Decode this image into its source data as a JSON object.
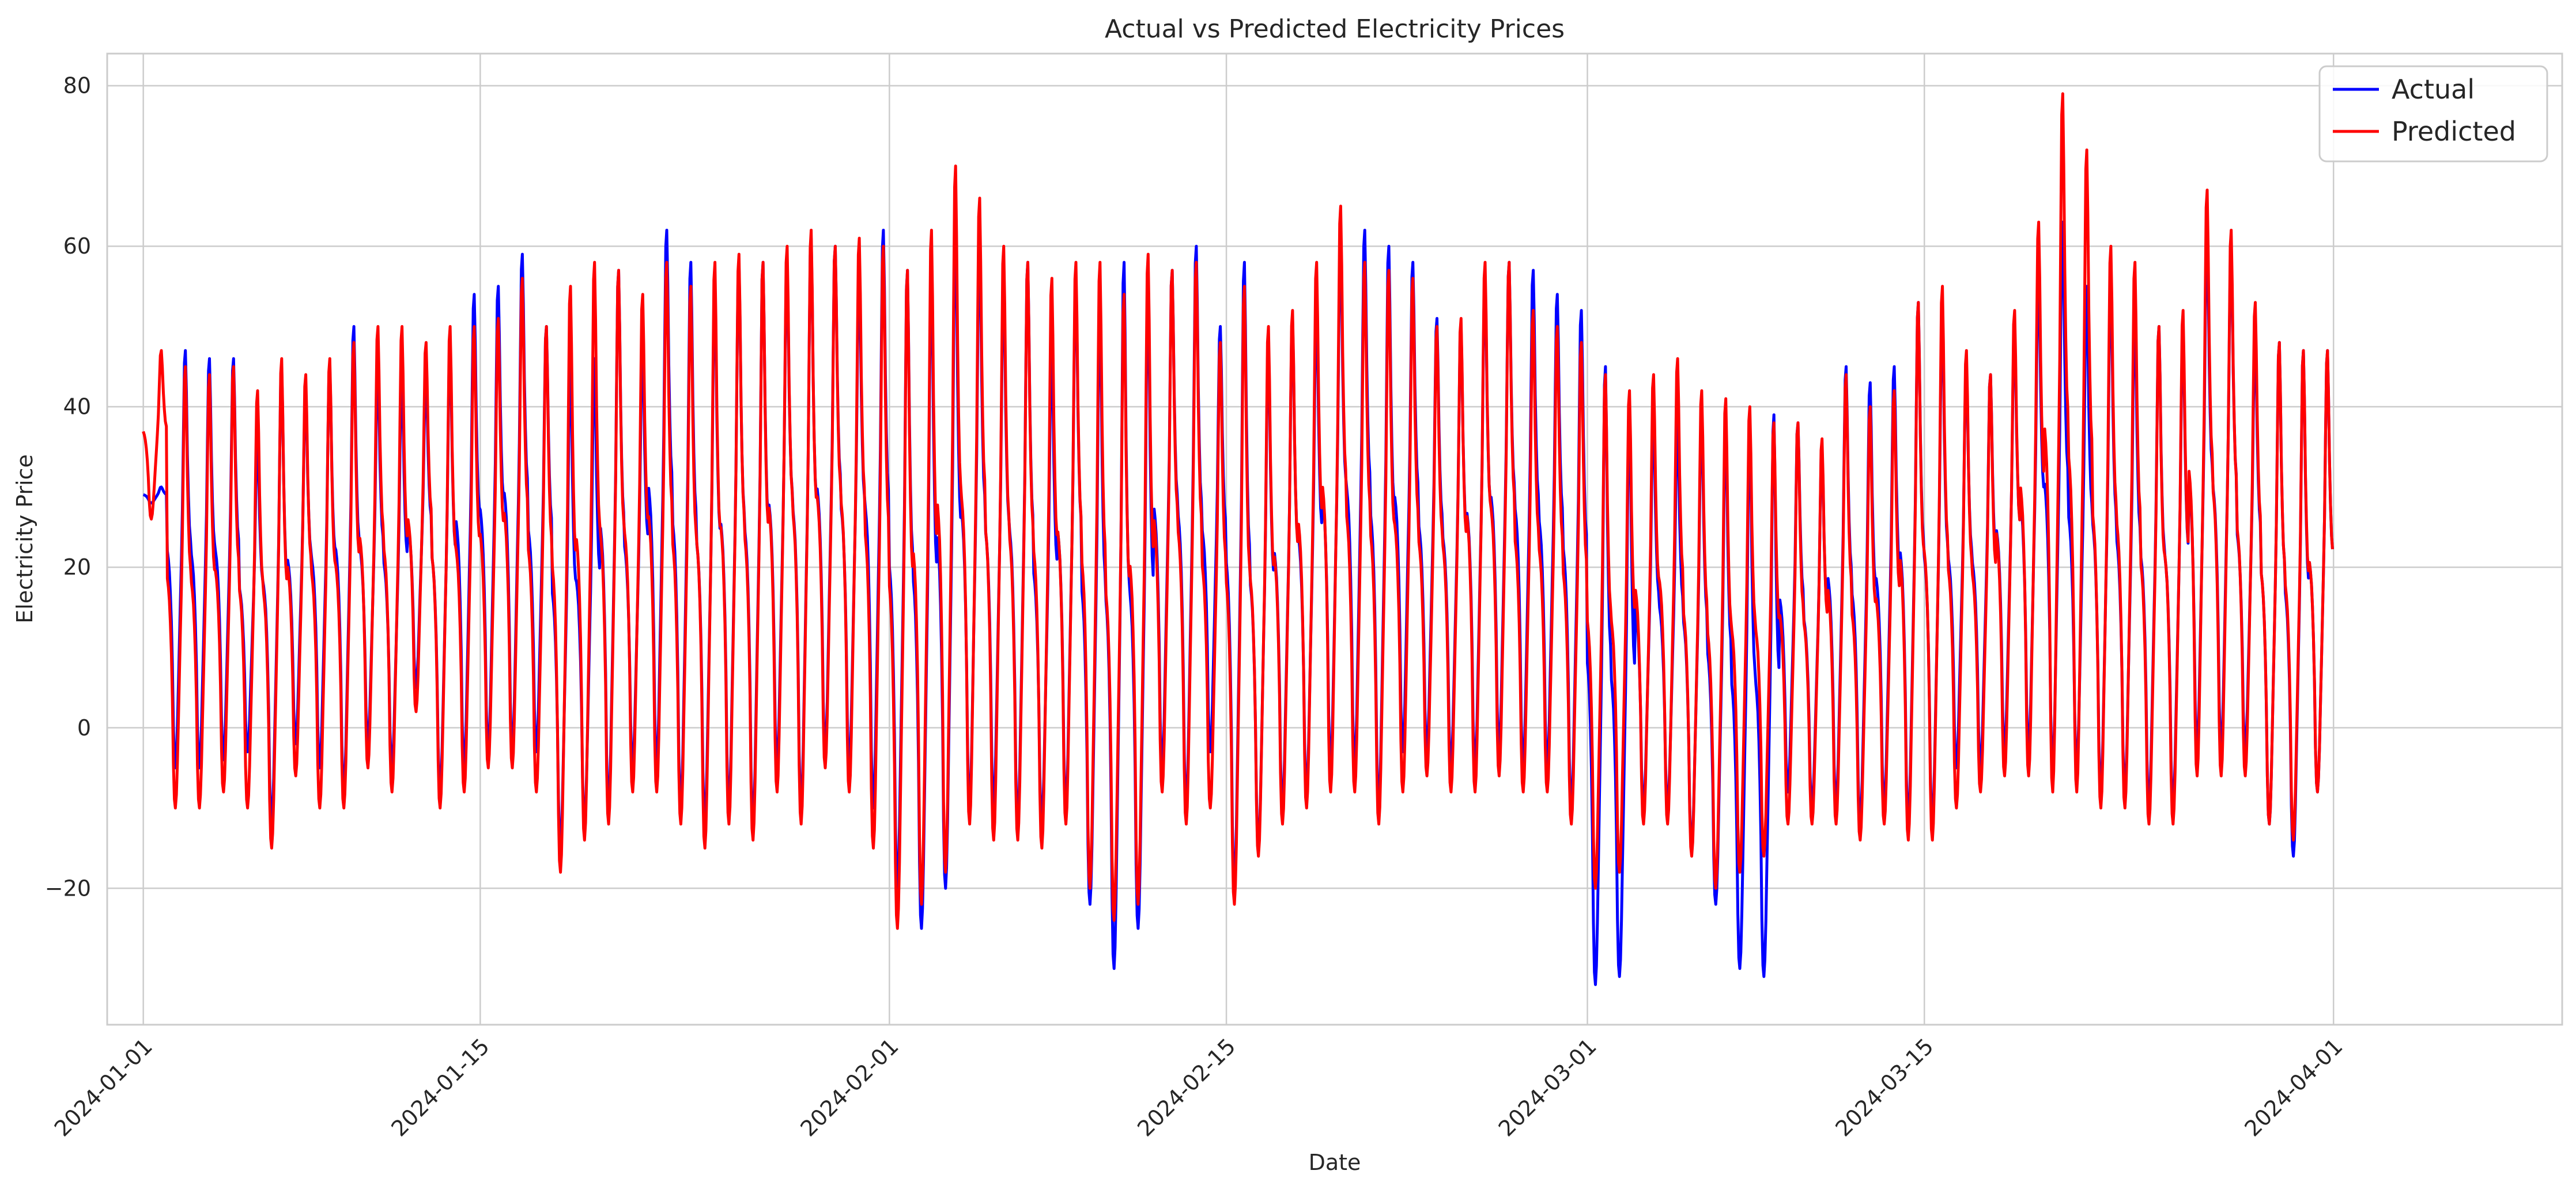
{
  "chart_data": {
    "type": "line",
    "title": "Actual vs Predicted Electricity Prices",
    "xlabel": "Date",
    "ylabel": "Electricity Price",
    "x_start": "2024-01-01",
    "x_end": "2024-03-31",
    "xlim_days": [
      -1.5,
      100.5
    ],
    "ylim": [
      -37,
      84
    ],
    "x_ticks": [
      {
        "day": 0,
        "label": "2024-01-01"
      },
      {
        "day": 14,
        "label": "2024-01-15"
      },
      {
        "day": 31,
        "label": "2024-02-01"
      },
      {
        "day": 45,
        "label": "2024-02-15"
      },
      {
        "day": 60,
        "label": "2024-03-01"
      },
      {
        "day": 74,
        "label": "2024-03-15"
      },
      {
        "day": 91,
        "label": "2024-04-01"
      }
    ],
    "y_ticks": [
      {
        "value": -20,
        "label": "−20"
      },
      {
        "value": 0,
        "label": "0"
      },
      {
        "value": 20,
        "label": "20"
      },
      {
        "value": 40,
        "label": "40"
      },
      {
        "value": 60,
        "label": "60"
      },
      {
        "value": 80,
        "label": "80"
      }
    ],
    "grid": true,
    "legend_position": "top-right",
    "sampling": "hourly",
    "daily_profile": [
      0.52,
      0.5,
      0.47,
      0.42,
      0.35,
      0.25,
      0.1,
      0.02,
      0.0,
      0.03,
      0.1,
      0.2,
      0.3,
      0.4,
      0.5,
      0.62,
      0.8,
      0.97,
      1.0,
      0.9,
      0.75,
      0.65,
      0.58,
      0.55
    ],
    "series": [
      {
        "name": "Actual",
        "color": "#0000ff",
        "daily_high": [
          30,
          47,
          46,
          46,
          36,
          45,
          42,
          45,
          50,
          45,
          44,
          44,
          48,
          54,
          55,
          59,
          50,
          46,
          46,
          57,
          48,
          62,
          58,
          55,
          58,
          58,
          58,
          61,
          60,
          57,
          62,
          57,
          58,
          64,
          61,
          56,
          58,
          48,
          56,
          53,
          58,
          55,
          57,
          60,
          50,
          58,
          48,
          51,
          53,
          61,
          62,
          60,
          58,
          51,
          50,
          56,
          58,
          57,
          54,
          52,
          45,
          40,
          39,
          38,
          39,
          38,
          38,
          39,
          38,
          35,
          45,
          43,
          45,
          53,
          52,
          45,
          44,
          50,
          57,
          63,
          55,
          56,
          52,
          50,
          50,
          62,
          60,
          49,
          48,
          47,
          47
        ],
        "daily_low": [
          28,
          -5,
          -5,
          -4,
          -3,
          -12,
          -2,
          -5,
          -8,
          -2,
          -5,
          5,
          -8,
          -5,
          -3,
          -3,
          -3,
          -15,
          -12,
          -10,
          -5,
          -5,
          -10,
          -12,
          -10,
          -12,
          -5,
          -10,
          -3,
          -5,
          -10,
          -20,
          -25,
          -20,
          -10,
          -10,
          -12,
          -12,
          -10,
          -22,
          -30,
          -25,
          -5,
          -10,
          -3,
          -20,
          -15,
          -10,
          -8,
          -5,
          -5,
          -10,
          -3,
          -3,
          -5,
          -5,
          -3,
          -5,
          -5,
          -10,
          -32,
          -31,
          -10,
          -10,
          -15,
          -22,
          -30,
          -31,
          -8,
          -10,
          -10,
          -12,
          -10,
          -12,
          -12,
          -5,
          -5,
          -3,
          -3,
          -5,
          -5,
          -8,
          -8,
          -10,
          -10,
          -3,
          -3,
          -3,
          -12,
          -16,
          -8
        ]
      },
      {
        "name": "Predicted",
        "color": "#ff0000",
        "daily_high": [
          47,
          45,
          44,
          45,
          42,
          46,
          44,
          46,
          48,
          50,
          50,
          48,
          50,
          50,
          51,
          56,
          50,
          55,
          58,
          57,
          54,
          58,
          55,
          58,
          59,
          58,
          60,
          62,
          60,
          61,
          60,
          57,
          62,
          70,
          66,
          60,
          58,
          56,
          58,
          58,
          54,
          59,
          57,
          58,
          48,
          55,
          50,
          52,
          58,
          65,
          58,
          57,
          56,
          50,
          51,
          58,
          58,
          52,
          50,
          48,
          44,
          42,
          44,
          46,
          42,
          41,
          40,
          38,
          38,
          36,
          44,
          40,
          42,
          53,
          55,
          47,
          44,
          52,
          63,
          79,
          72,
          60,
          58,
          50,
          52,
          67,
          62,
          53,
          48,
          47,
          47
        ],
        "daily_low": [
          26,
          -10,
          -10,
          -8,
          -10,
          -15,
          -6,
          -10,
          -10,
          -5,
          -8,
          2,
          -10,
          -8,
          -5,
          -5,
          -8,
          -18,
          -14,
          -12,
          -8,
          -8,
          -12,
          -15,
          -12,
          -14,
          -8,
          -12,
          -5,
          -8,
          -15,
          -25,
          -22,
          -18,
          -12,
          -14,
          -14,
          -15,
          -12,
          -20,
          -24,
          -22,
          -8,
          -12,
          -10,
          -22,
          -16,
          -12,
          -10,
          -8,
          -8,
          -12,
          -8,
          -6,
          -8,
          -8,
          -6,
          -8,
          -8,
          -12,
          -20,
          -18,
          -12,
          -12,
          -16,
          -20,
          -18,
          -16,
          -12,
          -12,
          -12,
          -14,
          -12,
          -14,
          -14,
          -10,
          -8,
          -6,
          -6,
          -8,
          -8,
          -10,
          -10,
          -12,
          -12,
          -6,
          -6,
          -6,
          -12,
          -14,
          -8
        ]
      }
    ]
  }
}
